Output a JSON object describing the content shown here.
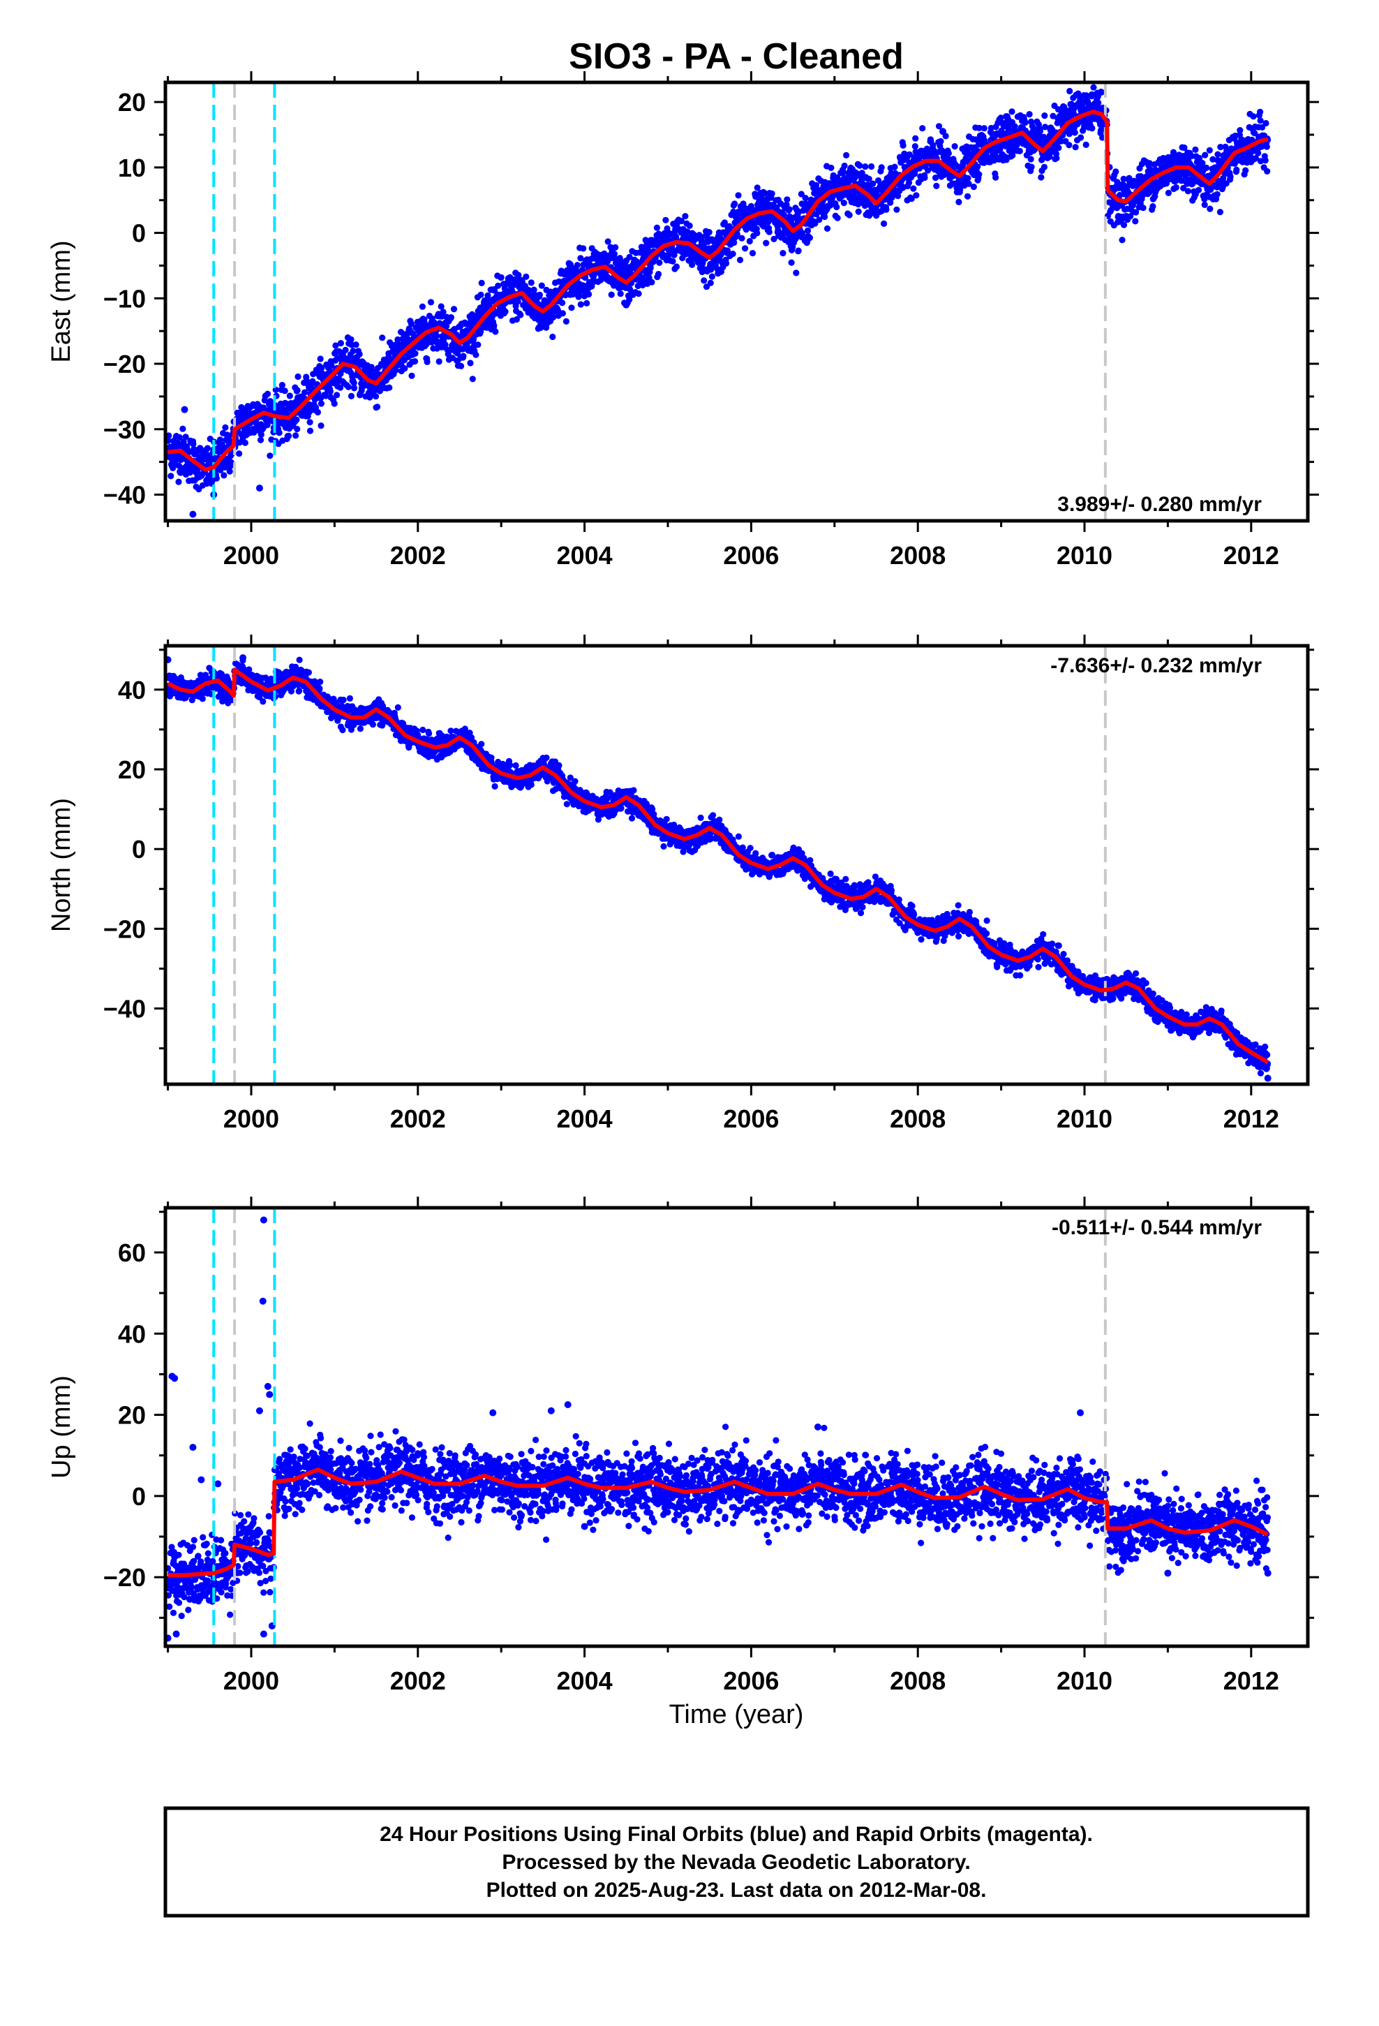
{
  "title": "SIO3  - PA - Cleaned",
  "xlabel": "Time (year)",
  "footer": [
    "24 Hour Positions Using Final Orbits (blue) and Rapid Orbits (magenta).",
    "Processed by the Nevada Geodetic Laboratory.",
    "Plotted on 2025-Aug-23. Last data on 2012-Mar-08."
  ],
  "colors": {
    "points": "#0000ff",
    "model": "#ff0000",
    "antenna_change": "#00e5ff",
    "equipment_change": "#c8c8c8"
  },
  "chart_data": [
    {
      "type": "scatter",
      "name": "east",
      "ylabel": "East (mm)",
      "rate_label": "3.989+/- 0.280 mm/yr",
      "xlim": [
        1998.97,
        2012.68
      ],
      "ylim": [
        -44,
        23
      ],
      "xticks": [
        2000,
        2002,
        2004,
        2006,
        2008,
        2010,
        2012
      ],
      "yticks": [
        -40,
        -30,
        -20,
        -10,
        0,
        10,
        20
      ],
      "cyan_lines": [
        1999.55,
        2000.28
      ],
      "gray_lines": [
        1999.8,
        2010.25
      ],
      "model": [
        [
          1999.0,
          -33.5
        ],
        [
          1999.15,
          -33.3
        ],
        [
          1999.3,
          -34.8
        ],
        [
          1999.45,
          -36.2
        ],
        [
          1999.55,
          -35.8
        ],
        [
          1999.7,
          -33.5
        ],
        [
          1999.79,
          -32.5
        ],
        [
          1999.8,
          -30.0
        ],
        [
          2000.0,
          -28.5
        ],
        [
          2000.15,
          -27.5
        ],
        [
          2000.28,
          -28.0
        ],
        [
          2000.45,
          -28.3
        ],
        [
          2000.6,
          -26.5
        ],
        [
          2000.8,
          -23.8
        ],
        [
          2000.95,
          -22.0
        ],
        [
          2001.1,
          -20.0
        ],
        [
          2001.25,
          -20.5
        ],
        [
          2001.4,
          -22.5
        ],
        [
          2001.5,
          -23.0
        ],
        [
          2001.6,
          -21.5
        ],
        [
          2001.8,
          -18.5
        ],
        [
          2001.95,
          -16.8
        ],
        [
          2002.1,
          -15.2
        ],
        [
          2002.25,
          -14.5
        ],
        [
          2002.4,
          -15.5
        ],
        [
          2002.5,
          -16.8
        ],
        [
          2002.6,
          -16.0
        ],
        [
          2002.8,
          -12.8
        ],
        [
          2002.95,
          -10.8
        ],
        [
          2003.1,
          -9.8
        ],
        [
          2003.25,
          -9.2
        ],
        [
          2003.4,
          -11.2
        ],
        [
          2003.5,
          -12.0
        ],
        [
          2003.6,
          -11.0
        ],
        [
          2003.8,
          -8.0
        ],
        [
          2003.95,
          -6.5
        ],
        [
          2004.1,
          -5.6
        ],
        [
          2004.25,
          -5.2
        ],
        [
          2004.4,
          -6.8
        ],
        [
          2004.5,
          -7.6
        ],
        [
          2004.6,
          -6.5
        ],
        [
          2004.8,
          -3.6
        ],
        [
          2004.95,
          -2.0
        ],
        [
          2005.1,
          -1.4
        ],
        [
          2005.25,
          -1.6
        ],
        [
          2005.4,
          -3.0
        ],
        [
          2005.5,
          -3.8
        ],
        [
          2005.6,
          -2.8
        ],
        [
          2005.8,
          0.5
        ],
        [
          2005.95,
          2.2
        ],
        [
          2006.1,
          3.0
        ],
        [
          2006.25,
          3.3
        ],
        [
          2006.4,
          1.8
        ],
        [
          2006.5,
          0.3
        ],
        [
          2006.6,
          1.2
        ],
        [
          2006.8,
          4.8
        ],
        [
          2006.95,
          6.3
        ],
        [
          2007.1,
          6.8
        ],
        [
          2007.25,
          7.2
        ],
        [
          2007.4,
          5.8
        ],
        [
          2007.5,
          4.5
        ],
        [
          2007.6,
          5.8
        ],
        [
          2007.8,
          8.8
        ],
        [
          2007.95,
          10.2
        ],
        [
          2008.1,
          11.0
        ],
        [
          2008.25,
          11.0
        ],
        [
          2008.4,
          9.5
        ],
        [
          2008.5,
          8.7
        ],
        [
          2008.6,
          10.0
        ],
        [
          2008.8,
          13.0
        ],
        [
          2008.95,
          14.0
        ],
        [
          2009.1,
          14.6
        ],
        [
          2009.25,
          15.3
        ],
        [
          2009.4,
          13.5
        ],
        [
          2009.5,
          12.5
        ],
        [
          2009.6,
          13.8
        ],
        [
          2009.8,
          16.8
        ],
        [
          2009.95,
          17.8
        ],
        [
          2010.1,
          18.5
        ],
        [
          2010.2,
          18.2
        ],
        [
          2010.27,
          17.0
        ],
        [
          2010.28,
          6.5
        ],
        [
          2010.4,
          5.0
        ],
        [
          2010.5,
          4.8
        ],
        [
          2010.6,
          6.0
        ],
        [
          2010.8,
          8.2
        ],
        [
          2010.95,
          9.2
        ],
        [
          2011.1,
          10.0
        ],
        [
          2011.25,
          10.0
        ],
        [
          2011.4,
          8.5
        ],
        [
          2011.5,
          7.5
        ],
        [
          2011.6,
          8.8
        ],
        [
          2011.8,
          12.2
        ],
        [
          2011.95,
          13.0
        ],
        [
          2012.1,
          14.0
        ],
        [
          2012.2,
          14.3
        ]
      ],
      "noise": 1.8,
      "outliers": [
        [
          1999.3,
          -43
        ],
        [
          1999.55,
          -40
        ],
        [
          1999.2,
          -27
        ],
        [
          2000.1,
          -39
        ],
        [
          2003.5,
          -14
        ],
        [
          2004.5,
          -11
        ],
        [
          2008.3,
          15.5
        ],
        [
          2010.2,
          21.5
        ]
      ]
    },
    {
      "type": "scatter",
      "name": "north",
      "ylabel": "North (mm)",
      "rate_label": "-7.636+/- 0.232 mm/yr",
      "xlim": [
        1998.97,
        2012.68
      ],
      "ylim": [
        -59,
        51
      ],
      "xticks": [
        2000,
        2002,
        2004,
        2006,
        2008,
        2010,
        2012
      ],
      "yticks": [
        -40,
        -20,
        0,
        20,
        40
      ],
      "cyan_lines": [
        1999.55,
        2000.28
      ],
      "gray_lines": [
        1999.8,
        2010.25
      ],
      "model": [
        [
          1999.0,
          41.5
        ],
        [
          1999.15,
          40.0
        ],
        [
          1999.3,
          39.5
        ],
        [
          1999.45,
          41.5
        ],
        [
          1999.6,
          42.3
        ],
        [
          1999.75,
          39.5
        ],
        [
          1999.79,
          38.5
        ],
        [
          1999.8,
          45.0
        ],
        [
          2000.0,
          42.0
        ],
        [
          2000.2,
          39.8
        ],
        [
          2000.35,
          41.0
        ],
        [
          2000.5,
          43.0
        ],
        [
          2000.65,
          42.0
        ],
        [
          2000.85,
          37.5
        ],
        [
          2001.0,
          35.0
        ],
        [
          2001.2,
          33.0
        ],
        [
          2001.35,
          33.0
        ],
        [
          2001.5,
          35.0
        ],
        [
          2001.65,
          33.0
        ],
        [
          2001.85,
          28.5
        ],
        [
          2002.0,
          27.0
        ],
        [
          2002.2,
          25.5
        ],
        [
          2002.35,
          26.0
        ],
        [
          2002.5,
          28.0
        ],
        [
          2002.65,
          26.0
        ],
        [
          2002.85,
          21.0
        ],
        [
          2003.0,
          19.0
        ],
        [
          2003.2,
          17.8
        ],
        [
          2003.35,
          18.5
        ],
        [
          2003.5,
          20.5
        ],
        [
          2003.65,
          18.5
        ],
        [
          2003.85,
          14.0
        ],
        [
          2004.0,
          12.0
        ],
        [
          2004.2,
          10.5
        ],
        [
          2004.35,
          11.0
        ],
        [
          2004.5,
          13.0
        ],
        [
          2004.65,
          11.0
        ],
        [
          2004.85,
          6.0
        ],
        [
          2005.0,
          4.0
        ],
        [
          2005.2,
          2.5
        ],
        [
          2005.35,
          3.5
        ],
        [
          2005.5,
          5.3
        ],
        [
          2005.65,
          3.5
        ],
        [
          2005.85,
          -1.5
        ],
        [
          2006.0,
          -3.5
        ],
        [
          2006.2,
          -5.0
        ],
        [
          2006.35,
          -4.0
        ],
        [
          2006.5,
          -2.3
        ],
        [
          2006.65,
          -4.0
        ],
        [
          2006.85,
          -9.0
        ],
        [
          2007.0,
          -11.0
        ],
        [
          2007.2,
          -12.5
        ],
        [
          2007.35,
          -12.0
        ],
        [
          2007.5,
          -10.0
        ],
        [
          2007.65,
          -12.0
        ],
        [
          2007.85,
          -17.0
        ],
        [
          2008.0,
          -19.0
        ],
        [
          2008.2,
          -20.5
        ],
        [
          2008.35,
          -19.5
        ],
        [
          2008.5,
          -17.5
        ],
        [
          2008.65,
          -19.5
        ],
        [
          2008.85,
          -24.5
        ],
        [
          2009.0,
          -26.5
        ],
        [
          2009.2,
          -28.0
        ],
        [
          2009.35,
          -27.0
        ],
        [
          2009.5,
          -25.0
        ],
        [
          2009.65,
          -27.0
        ],
        [
          2009.85,
          -32.0
        ],
        [
          2010.0,
          -34.0
        ],
        [
          2010.2,
          -35.5
        ],
        [
          2010.35,
          -35.0
        ],
        [
          2010.5,
          -33.5
        ],
        [
          2010.65,
          -35.0
        ],
        [
          2010.85,
          -40.0
        ],
        [
          2011.0,
          -42.0
        ],
        [
          2011.2,
          -44.0
        ],
        [
          2011.35,
          -44.0
        ],
        [
          2011.5,
          -42.5
        ],
        [
          2011.65,
          -44.0
        ],
        [
          2011.85,
          -49.0
        ],
        [
          2012.0,
          -51.0
        ],
        [
          2012.2,
          -53.5
        ]
      ],
      "noise": 1.4,
      "outliers": [
        [
          1999.0,
          47.5
        ],
        [
          1999.9,
          48.0
        ],
        [
          2000.3,
          44.5
        ],
        [
          2012.2,
          -57.5
        ]
      ]
    },
    {
      "type": "scatter",
      "name": "up",
      "ylabel": "Up (mm)",
      "rate_label": "-0.511+/- 0.544 mm/yr",
      "xlim": [
        1998.97,
        2012.68
      ],
      "ylim": [
        -37,
        71
      ],
      "xticks": [
        2000,
        2002,
        2004,
        2006,
        2008,
        2010,
        2012
      ],
      "yticks": [
        -20,
        0,
        20,
        40,
        60
      ],
      "cyan_lines": [
        1999.55,
        2000.28
      ],
      "gray_lines": [
        1999.8,
        2010.25
      ],
      "model": [
        [
          1999.0,
          -19.5
        ],
        [
          1999.2,
          -19.5
        ],
        [
          1999.4,
          -19.2
        ],
        [
          1999.55,
          -19.0
        ],
        [
          1999.7,
          -18.0
        ],
        [
          1999.79,
          -17.0
        ],
        [
          1999.8,
          -12.0
        ],
        [
          2000.0,
          -13.0
        ],
        [
          2000.2,
          -14.5
        ],
        [
          2000.27,
          -14.2
        ],
        [
          2000.28,
          3.5
        ],
        [
          2000.5,
          4.0
        ],
        [
          2000.8,
          6.5
        ],
        [
          2001.0,
          4.5
        ],
        [
          2001.2,
          3.0
        ],
        [
          2001.5,
          3.5
        ],
        [
          2001.8,
          6.0
        ],
        [
          2002.0,
          4.5
        ],
        [
          2002.2,
          3.0
        ],
        [
          2002.5,
          3.0
        ],
        [
          2002.8,
          5.0
        ],
        [
          2003.0,
          3.5
        ],
        [
          2003.2,
          2.5
        ],
        [
          2003.5,
          2.5
        ],
        [
          2003.8,
          4.5
        ],
        [
          2004.0,
          3.0
        ],
        [
          2004.2,
          2.0
        ],
        [
          2004.5,
          2.0
        ],
        [
          2004.8,
          3.5
        ],
        [
          2005.0,
          2.0
        ],
        [
          2005.2,
          1.0
        ],
        [
          2005.5,
          1.5
        ],
        [
          2005.8,
          3.5
        ],
        [
          2006.0,
          2.0
        ],
        [
          2006.2,
          0.5
        ],
        [
          2006.5,
          0.5
        ],
        [
          2006.8,
          3.0
        ],
        [
          2007.0,
          1.5
        ],
        [
          2007.2,
          0.5
        ],
        [
          2007.5,
          0.5
        ],
        [
          2007.8,
          2.8
        ],
        [
          2008.0,
          1.0
        ],
        [
          2008.2,
          -0.5
        ],
        [
          2008.5,
          -0.3
        ],
        [
          2008.8,
          2.3
        ],
        [
          2009.0,
          0.5
        ],
        [
          2009.2,
          -1.0
        ],
        [
          2009.5,
          -0.8
        ],
        [
          2009.8,
          1.7
        ],
        [
          2010.0,
          -0.5
        ],
        [
          2010.2,
          -1.5
        ],
        [
          2010.27,
          -1.5
        ],
        [
          2010.28,
          -8.0
        ],
        [
          2010.5,
          -8.0
        ],
        [
          2010.8,
          -6.0
        ],
        [
          2011.0,
          -8.0
        ],
        [
          2011.2,
          -9.0
        ],
        [
          2011.5,
          -8.5
        ],
        [
          2011.8,
          -6.0
        ],
        [
          2012.0,
          -7.5
        ],
        [
          2012.2,
          -9.5
        ]
      ],
      "noise": 4.0,
      "outliers": [
        [
          1999.05,
          29.5
        ],
        [
          1999.08,
          29.0
        ],
        [
          1999.3,
          12
        ],
        [
          1999.4,
          4
        ],
        [
          1999.6,
          3
        ],
        [
          2000.15,
          68
        ],
        [
          2000.14,
          48
        ],
        [
          2000.2,
          27
        ],
        [
          2000.22,
          25
        ],
        [
          2000.1,
          21
        ],
        [
          2000.25,
          -32
        ],
        [
          2000.15,
          -34
        ],
        [
          1999.0,
          -35
        ],
        [
          1999.1,
          -34
        ],
        [
          2002.9,
          20.5
        ],
        [
          2003.8,
          22.5
        ],
        [
          2003.6,
          21
        ],
        [
          2004.0,
          -7.5
        ],
        [
          2006.8,
          17
        ],
        [
          2009.95,
          20.5
        ],
        [
          2011.0,
          -19
        ],
        [
          2012.2,
          -19
        ]
      ]
    }
  ]
}
